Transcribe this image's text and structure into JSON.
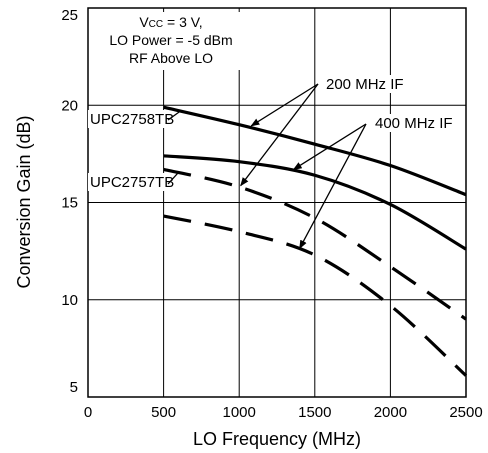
{
  "chart_data": {
    "type": "line",
    "xlabel": "LO Frequency (MHz)",
    "ylabel": "Conversion Gain (dB)",
    "xlim": [
      0,
      2500
    ],
    "ylim": [
      5,
      25
    ],
    "x_ticks": [
      0,
      500,
      1000,
      1500,
      2000,
      2500
    ],
    "y_ticks": [
      5,
      10,
      15,
      20,
      25
    ],
    "grid": true,
    "conditions": {
      "vcc_main": "V",
      "vcc_sub": "CC",
      "vcc_rest": " = 3 V,",
      "lo_power": "LO Power = -5 dBm",
      "rf": "RF Above LO"
    },
    "legend": {
      "if_200": "200 MHz IF",
      "if_400": "400 MHz IF"
    },
    "devices": {
      "upc2758tb": "UPC2758TB",
      "upc2757tb": "UPC2757TB"
    },
    "series": [
      {
        "device": "UPC2758TB",
        "if": "200 MHz IF",
        "style": "solid",
        "x": [
          500,
          1000,
          1500,
          2000,
          2500
        ],
        "y": [
          19.9,
          19.0,
          18.0,
          16.9,
          15.4
        ]
      },
      {
        "device": "UPC2758TB",
        "if": "400 MHz IF",
        "style": "solid",
        "x": [
          500,
          1000,
          1500,
          2000,
          2500
        ],
        "y": [
          17.4,
          17.1,
          16.4,
          14.9,
          12.6
        ]
      },
      {
        "device": "UPC2757TB",
        "if": "200 MHz IF",
        "style": "dashed",
        "x": [
          500,
          1000,
          1500,
          2000,
          2500
        ],
        "y": [
          16.7,
          15.8,
          14.2,
          11.7,
          9.0
        ]
      },
      {
        "device": "UPC2757TB",
        "if": "400 MHz IF",
        "style": "dashed",
        "x": [
          500,
          1000,
          1500,
          2000,
          2500
        ],
        "y": [
          14.3,
          13.5,
          12.3,
          9.7,
          6.1
        ]
      }
    ]
  }
}
